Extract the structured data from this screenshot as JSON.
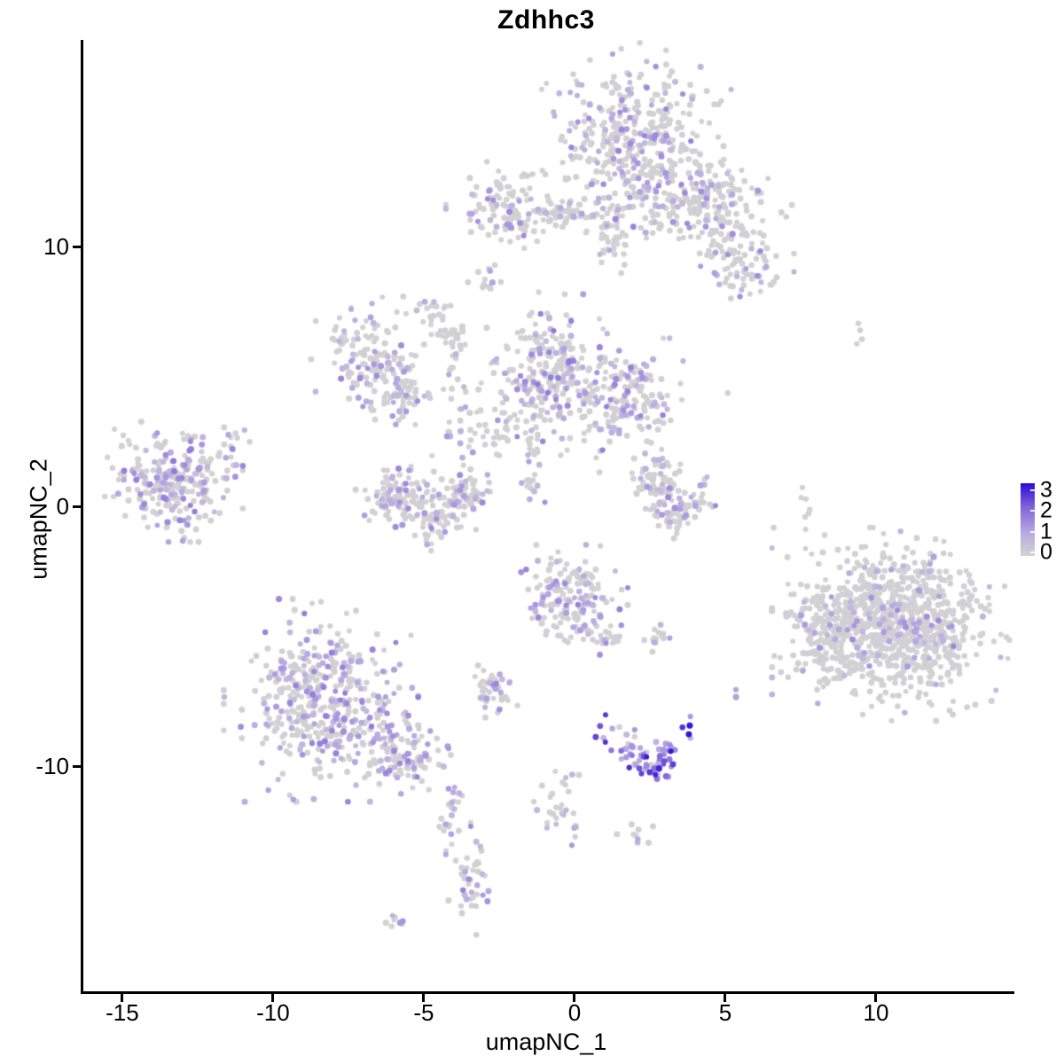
{
  "chart_data": {
    "type": "scatter",
    "subtype": "umap-feature-plot",
    "title": "Zdhhc3",
    "xlabel": "umapNC_1",
    "ylabel": "umapNC_2",
    "xlim": [
      -16.35,
      14.5
    ],
    "ylim": [
      -18.65,
      17.95
    ],
    "x_ticks": [
      "-15",
      "-10",
      "-5",
      "0",
      "5",
      "10"
    ],
    "x_tick_values": [
      -15,
      -10,
      -5,
      0,
      5,
      10
    ],
    "y_ticks": [
      "-10",
      "0",
      "10"
    ],
    "y_tick_values": [
      -10,
      0,
      10
    ],
    "grid": false,
    "legend_position": "right",
    "colorbar": {
      "ticks": [
        "3",
        "2",
        "1",
        "0"
      ],
      "tick_values": [
        3,
        2,
        1,
        0
      ],
      "vmin": 0,
      "vmax": 3,
      "min_color": "#d3d3d3",
      "mid_low_color": "#b4a8e2",
      "mid_high_color": "#8165d8",
      "max_color": "#2b0bd9"
    },
    "point_radius_px": 3.2,
    "clusters": [
      {
        "name": "top-main",
        "cx": 1.97,
        "cy": 14.0,
        "sdx": 1.24,
        "sdy": 1.7,
        "n": 400,
        "frac": 0.22,
        "emax": 1.6
      },
      {
        "name": "top-neck",
        "cx": 1.18,
        "cy": 10.53,
        "sdx": 0.3,
        "sdy": 0.75,
        "n": 45,
        "frac": 0.15,
        "emax": 1.4
      },
      {
        "name": "top-left-sub",
        "cx": -2.29,
        "cy": 11.55,
        "sdx": 0.76,
        "sdy": 0.68,
        "n": 120,
        "frac": 0.25,
        "emax": 1.5
      },
      {
        "name": "top-bridge",
        "cx": -0.29,
        "cy": 11.28,
        "sdx": 0.76,
        "sdy": 0.27,
        "n": 45,
        "frac": 0.18,
        "emax": 1.4
      },
      {
        "name": "top-right",
        "cx": 4.24,
        "cy": 11.55,
        "sdx": 1.18,
        "sdy": 0.89,
        "n": 220,
        "frac": 0.18,
        "emax": 1.5
      },
      {
        "name": "top-right-arm",
        "cx": 5.59,
        "cy": 9.37,
        "sdx": 0.65,
        "sdy": 0.68,
        "n": 80,
        "frac": 0.2,
        "emax": 1.5
      },
      {
        "name": "mid-left-lobe",
        "cx": -6.76,
        "cy": 5.62,
        "sdx": 0.76,
        "sdy": 0.95,
        "n": 150,
        "frac": 0.3,
        "emax": 1.6
      },
      {
        "name": "mid-left-trail",
        "cx": -5.59,
        "cy": 4.19,
        "sdx": 0.41,
        "sdy": 0.55,
        "n": 45,
        "frac": 0.25,
        "emax": 1.4
      },
      {
        "name": "mid-strand",
        "cx": -4.18,
        "cy": 6.3,
        "sdx": 0.29,
        "sdy": 0.75,
        "n": 35,
        "frac": 0.12,
        "emax": 1.2
      },
      {
        "name": "mid-dot-a",
        "cx": -4.71,
        "cy": 7.32,
        "sdx": 0.24,
        "sdy": 0.27,
        "n": 15,
        "frac": 0.2,
        "emax": 1.2
      },
      {
        "name": "mid-dot-b",
        "cx": -2.91,
        "cy": 8.65,
        "sdx": 0.24,
        "sdy": 0.34,
        "n": 12,
        "frac": 0.2,
        "emax": 1.2
      },
      {
        "name": "mid-central",
        "cx": -0.76,
        "cy": 5.15,
        "sdx": 0.79,
        "sdy": 1.16,
        "n": 240,
        "frac": 0.32,
        "emax": 1.7
      },
      {
        "name": "mid-right-lobe",
        "cx": 1.71,
        "cy": 4.16,
        "sdx": 0.76,
        "sdy": 0.89,
        "n": 170,
        "frac": 0.3,
        "emax": 1.6
      },
      {
        "name": "mid-connect",
        "cx": -2.79,
        "cy": 3.2,
        "sdx": 0.82,
        "sdy": 0.75,
        "n": 55,
        "frac": 0.15,
        "emax": 1.3
      },
      {
        "name": "mid-down-strand",
        "cx": -1.41,
        "cy": 1.87,
        "sdx": 0.21,
        "sdy": 0.82,
        "n": 28,
        "frac": 0.3,
        "emax": 1.5
      },
      {
        "name": "left-main",
        "cx": -13.29,
        "cy": 0.95,
        "sdx": 0.88,
        "sdy": 0.89,
        "n": 260,
        "frac": 0.38,
        "emax": 1.7
      },
      {
        "name": "left-outlier",
        "cx": -11.53,
        "cy": 2.56,
        "sdx": 0.29,
        "sdy": 0.34,
        "n": 10,
        "frac": 0.3,
        "emax": 1.4
      },
      {
        "name": "u-left",
        "cx": -5.88,
        "cy": 0.37,
        "sdx": 0.53,
        "sdy": 0.61,
        "n": 90,
        "frac": 0.25,
        "emax": 1.5
      },
      {
        "name": "u-mid",
        "cx": -4.59,
        "cy": -0.2,
        "sdx": 0.65,
        "sdy": 0.48,
        "n": 90,
        "frac": 0.28,
        "emax": 1.5,
        "bend": -8
      },
      {
        "name": "u-right",
        "cx": -3.68,
        "cy": 0.51,
        "sdx": 0.35,
        "sdy": 0.55,
        "n": 50,
        "frac": 0.25,
        "emax": 1.5
      },
      {
        "name": "crescent-left",
        "cx": 2.41,
        "cy": 0.85,
        "sdx": 0.24,
        "sdy": 0.34,
        "n": 20,
        "frac": 0.2,
        "emax": 1.4
      },
      {
        "name": "crescent-top",
        "cx": 2.88,
        "cy": 1.06,
        "sdx": 0.29,
        "sdy": 0.48,
        "n": 40,
        "frac": 0.2,
        "emax": 1.4
      },
      {
        "name": "crescent-main",
        "cx": 3.35,
        "cy": -0.03,
        "sdx": 0.53,
        "sdy": 0.44,
        "n": 90,
        "frac": 0.22,
        "emax": 1.5,
        "bend": -8
      },
      {
        "name": "center-bottom",
        "cx": -0.21,
        "cy": -3.61,
        "sdx": 0.76,
        "sdy": 0.82,
        "n": 160,
        "frac": 0.28,
        "emax": 1.6
      },
      {
        "name": "center-bottom-tail",
        "cx": 1.0,
        "cy": -4.97,
        "sdx": 0.35,
        "sdy": 0.41,
        "n": 25,
        "frac": 0.25,
        "emax": 1.4
      },
      {
        "name": "center-bottom-pair",
        "cx": 2.76,
        "cy": -4.94,
        "sdx": 0.26,
        "sdy": 0.27,
        "n": 14,
        "frac": 0.3,
        "emax": 1.5
      },
      {
        "name": "right-main",
        "cx": 10.53,
        "cy": -4.53,
        "sdx": 1.53,
        "sdy": 1.43,
        "n": 950,
        "frac": 0.1,
        "emax": 1.5
      },
      {
        "name": "right-ext",
        "cx": 8.15,
        "cy": -4.8,
        "sdx": 0.47,
        "sdy": 0.82,
        "n": 70,
        "frac": 0.12,
        "emax": 1.4
      },
      {
        "name": "right-dots-top",
        "cx": 9.47,
        "cy": 6.61,
        "sdx": 0.18,
        "sdy": 0.27,
        "n": 4,
        "frac": 0.0,
        "emax": 0.0
      },
      {
        "name": "right-strand",
        "cx": 7.76,
        "cy": -0.03,
        "sdx": 0.15,
        "sdy": 0.61,
        "n": 8,
        "frac": 0.1,
        "emax": 1.0
      },
      {
        "name": "right-single",
        "cx": 5.26,
        "cy": -7.02,
        "sdx": 0.12,
        "sdy": 0.12,
        "n": 2,
        "frac": 0.8,
        "emax": 1.4
      },
      {
        "name": "bottomleft-main",
        "cx": -8.41,
        "cy": -7.46,
        "sdx": 1.24,
        "sdy": 1.5,
        "n": 430,
        "frac": 0.38,
        "emax": 1.7
      },
      {
        "name": "bottomleft-arm",
        "cx": -5.76,
        "cy": -9.57,
        "sdx": 0.76,
        "sdy": 0.61,
        "n": 110,
        "frac": 0.35,
        "emax": 1.6
      },
      {
        "name": "bottomleft-trail",
        "cx": -4.12,
        "cy": -11.82,
        "sdx": 0.26,
        "sdy": 0.89,
        "n": 26,
        "frac": 0.4,
        "emax": 1.5
      },
      {
        "name": "bottomleft-bottom",
        "cx": -3.53,
        "cy": -14.62,
        "sdx": 0.26,
        "sdy": 0.89,
        "n": 40,
        "frac": 0.45,
        "emax": 1.6
      },
      {
        "name": "bottomleft-tiny",
        "cx": -5.91,
        "cy": -15.95,
        "sdx": 0.24,
        "sdy": 0.2,
        "n": 8,
        "frac": 0.3,
        "emax": 1.3
      },
      {
        "name": "small-mid-low",
        "cx": -2.79,
        "cy": -7.05,
        "sdx": 0.41,
        "sdy": 0.41,
        "n": 48,
        "frac": 0.3,
        "emax": 1.5
      },
      {
        "name": "blue-cluster",
        "cx": 2.44,
        "cy": -9.54,
        "sdx": 0.71,
        "sdy": 0.37,
        "n": 75,
        "frac": 0.92,
        "emin": 0.7,
        "emax": 3.0,
        "bend": -8
      },
      {
        "name": "blue-above",
        "cx": 1.88,
        "cy": -8.82,
        "sdx": 0.15,
        "sdy": 0.15,
        "n": 4,
        "frac": 0.5,
        "emax": 2.0
      },
      {
        "name": "trail-low",
        "cx": -0.44,
        "cy": -11.62,
        "sdx": 0.35,
        "sdy": 0.68,
        "n": 30,
        "frac": 0.35,
        "emax": 1.5
      },
      {
        "name": "trail-low-dots",
        "cx": 2.03,
        "cy": -12.61,
        "sdx": 0.24,
        "sdy": 0.27,
        "n": 9,
        "frac": 0.4,
        "emax": 1.5
      },
      {
        "name": "sparse-mid",
        "cx": -1.7,
        "cy": 3.4,
        "sdx": 2.8,
        "sdy": 2.2,
        "n": 25,
        "frac": 0.2,
        "emax": 1.3
      }
    ]
  }
}
